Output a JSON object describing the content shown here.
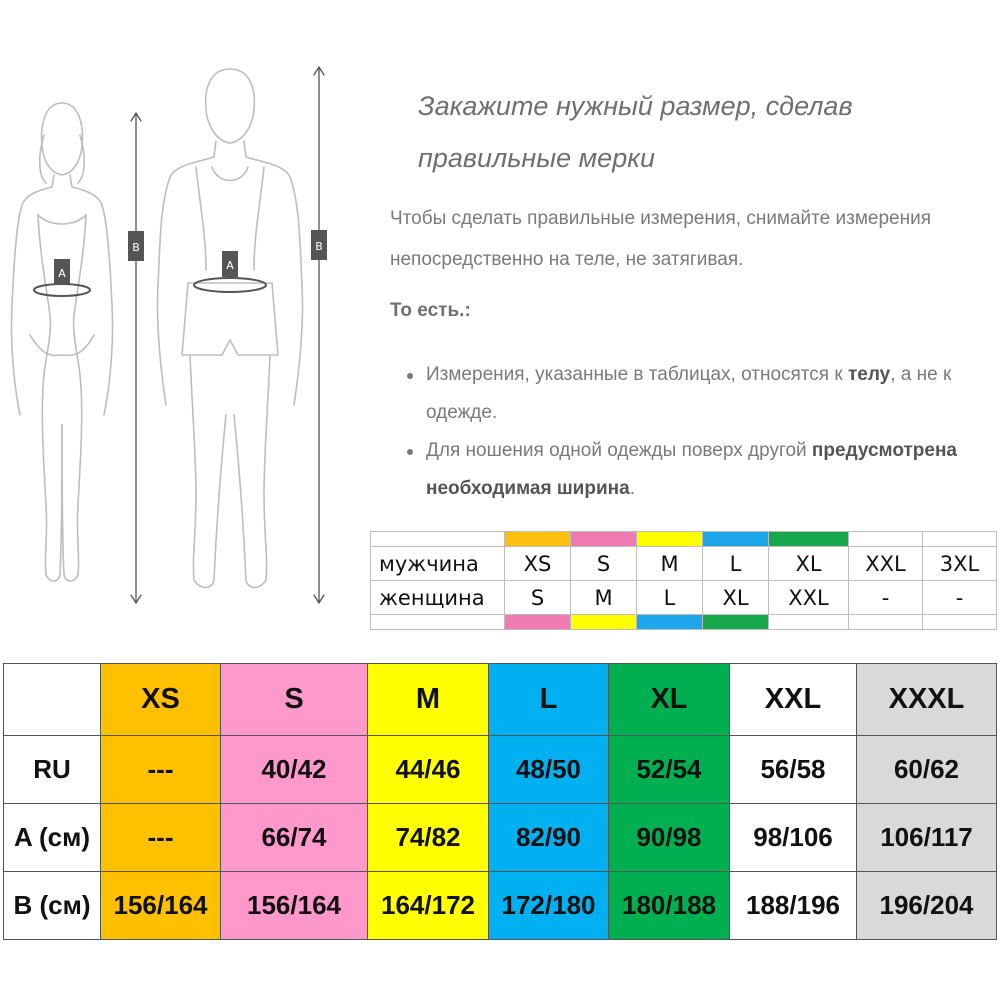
{
  "heading": "Закажите нужный размер, сделав правильные мерки",
  "intro": "Чтобы сделать правильные измерения, снимайте измерения непосредственно на теле, не затягивая.",
  "subheading": "То есть.:",
  "bullets": {
    "b1_pre": "Измерения, указанные в таблицах, относятся к ",
    "b1_bold": "телу",
    "b1_post": ", а не к одежде.",
    "b2_pre": "Для ношения одной одежды поверх другой ",
    "b2_bold": "предусмотрена необходимая ширина",
    "b2_post": "."
  },
  "figures": {
    "label_a": "A",
    "label_b": "B"
  },
  "small_table": {
    "men_label": "мужчина",
    "women_label": "женщина",
    "men": [
      "XS",
      "S",
      "M",
      "L",
      "XL",
      "XXL",
      "3XL"
    ],
    "women": [
      "S",
      "M",
      "L",
      "XL",
      "XXL",
      "-",
      "-"
    ],
    "top_colors": [
      "#fbbf10",
      "#f07ab2",
      "#ffff00",
      "#1ea6ea",
      "#16a84a",
      "#ffffff",
      "#ffffff"
    ],
    "bottom_colors": [
      "#f07ab2",
      "#ffff00",
      "#1ea6ea",
      "#16a84a",
      "#ffffff",
      "#ffffff",
      "#ffffff"
    ]
  },
  "size_table": {
    "sizes": [
      "XS",
      "S",
      "M",
      "L",
      "XL",
      "XXL",
      "XXXL"
    ],
    "column_colors": [
      "#ffc000",
      "#ff99cc",
      "#ffff00",
      "#00b0f0",
      "#00b050",
      "#ffffff",
      "#d9d9d9"
    ],
    "rows": [
      {
        "label": "RU",
        "values": [
          "---",
          "40/42",
          "44/46",
          "48/50",
          "52/54",
          "56/58",
          "60/62"
        ]
      },
      {
        "label": "A (см)",
        "values": [
          "---",
          "66/74",
          "74/82",
          "82/90",
          "90/98",
          "98/106",
          "106/117"
        ]
      },
      {
        "label": "B (см)",
        "values": [
          "156/164",
          "156/164",
          "164/172",
          "172/180",
          "180/188",
          "188/196",
          "196/204"
        ]
      }
    ]
  }
}
